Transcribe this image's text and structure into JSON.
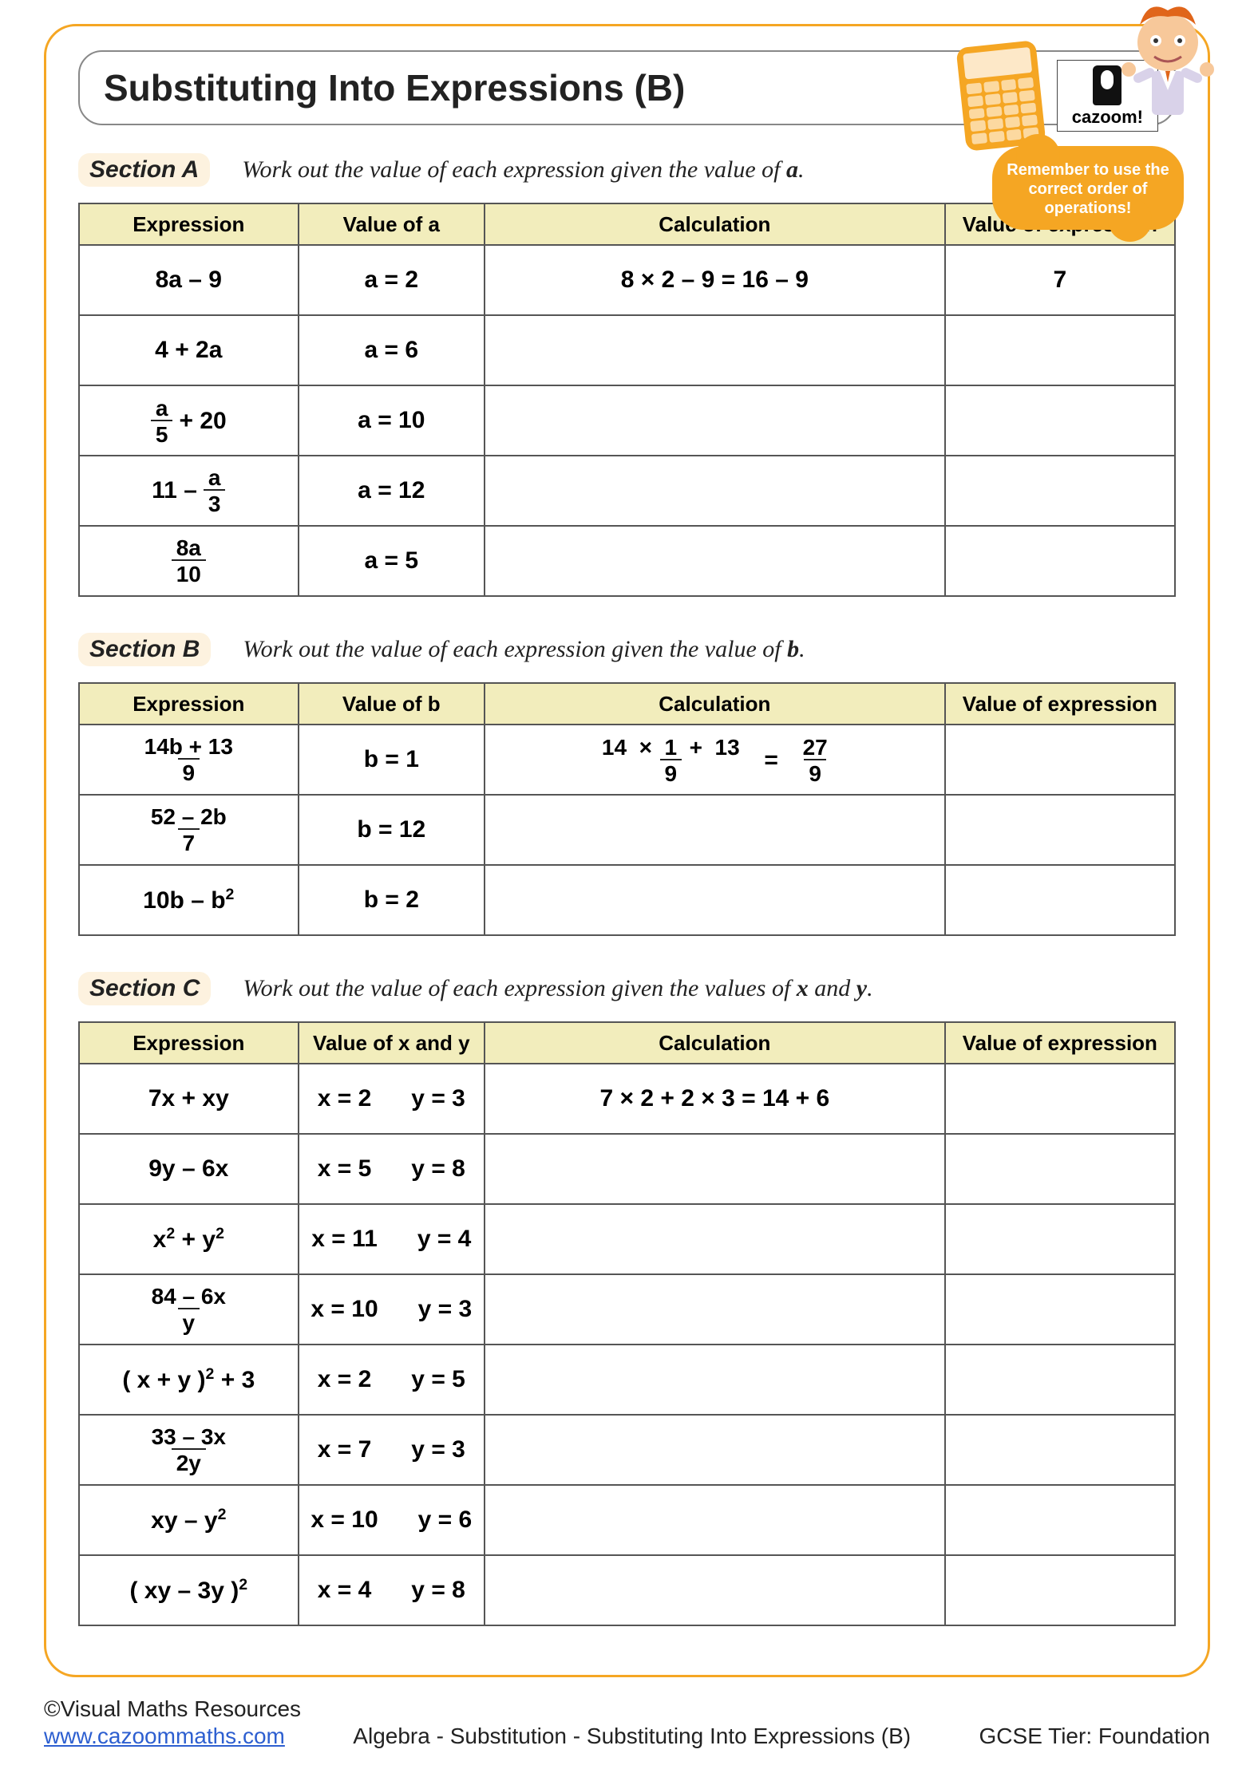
{
  "title": "Substituting Into Expressions (B)",
  "logo_text": "cazoom!",
  "reminder": "Remember to use the correct order of operations!",
  "sections": {
    "a": {
      "label": "Section A",
      "instr_pre": "Work out the value of each expression given the value of ",
      "instr_var": "a",
      "instr_post": ".",
      "headers": {
        "expr": "Expression",
        "val": "Value of a",
        "calc": "Calculation",
        "res": "Value of expression"
      },
      "rows": [
        {
          "expr_html": "8a – 9",
          "val": "a = 2",
          "calc_html": "8 × 2 – 9  =  16 – 9",
          "res": "7"
        },
        {
          "expr_html": "4 + 2a",
          "val": "a = 6",
          "calc_html": "",
          "res": ""
        },
        {
          "expr_html": "<span class='expr-wrap'><span class='frac'><span class='num'>a</span><span class='den'>5</span></span> + 20</span>",
          "val": "a = 10",
          "calc_html": "",
          "res": ""
        },
        {
          "expr_html": "<span class='expr-wrap'>11 – <span class='frac'><span class='num'>a</span><span class='den'>3</span></span></span>",
          "val": "a = 12",
          "calc_html": "",
          "res": ""
        },
        {
          "expr_html": "<span class='frac'><span class='num'>8a</span><span class='den'>10</span></span>",
          "val": "a = 5",
          "calc_html": "",
          "res": ""
        }
      ]
    },
    "b": {
      "label": "Section B",
      "instr_pre": "Work out the value of each expression given the value of ",
      "instr_var": "b",
      "instr_post": ".",
      "headers": {
        "expr": "Expression",
        "val": "Value of b",
        "calc": "Calculation",
        "res": "Value of expression"
      },
      "rows": [
        {
          "expr_html": "<span class='frac'><span class='num'>14b + 13</span><span class='den'>9</span></span>",
          "val": "b = 1",
          "calc_html": "<span class='expr-wrap'><span class='frac'><span class='num'>14 &nbsp;×&nbsp; 1 &nbsp;+&nbsp; 13</span><span class='den'>9</span></span>&nbsp; = &nbsp;<span class='frac'><span class='num'>27</span><span class='den'>9</span></span></span>",
          "res": ""
        },
        {
          "expr_html": "<span class='frac'><span class='num'>52 – 2b</span><span class='den'>7</span></span>",
          "val": "b = 12",
          "calc_html": "",
          "res": ""
        },
        {
          "expr_html": "10b – b<sup>2</sup>",
          "val": "b = 2",
          "calc_html": "",
          "res": ""
        }
      ]
    },
    "c": {
      "label": "Section C",
      "instr_pre": "Work out the value of each expression given the values of ",
      "instr_var": "x",
      "instr_mid": " and ",
      "instr_var2": "y",
      "instr_post": ".",
      "headers": {
        "expr": "Expression",
        "val": "Value of x and y",
        "calc": "Calculation",
        "res": "Value of expression"
      },
      "rows": [
        {
          "expr_html": "7x + xy",
          "x": "x = 2",
          "y": "y = 3",
          "calc_html": "7 × 2 + 2 × 3  =  14 + 6",
          "res": ""
        },
        {
          "expr_html": "9y – 6x",
          "x": "x = 5",
          "y": "y = 8",
          "calc_html": "",
          "res": ""
        },
        {
          "expr_html": "x<sup>2</sup> + y<sup>2</sup>",
          "x": "x = 11",
          "y": "y = 4",
          "calc_html": "",
          "res": ""
        },
        {
          "expr_html": "<span class='frac'><span class='num'>84 – 6x</span><span class='den'>y</span></span>",
          "x": "x = 10",
          "y": "y = 3",
          "calc_html": "",
          "res": ""
        },
        {
          "expr_html": "( x + y )<sup>2</sup> + 3",
          "x": "x = 2",
          "y": "y = 5",
          "calc_html": "",
          "res": ""
        },
        {
          "expr_html": "<span class='frac'><span class='num'>33 – 3x</span><span class='den'>2y</span></span>",
          "x": "x = 7",
          "y": "y = 3",
          "calc_html": "",
          "res": ""
        },
        {
          "expr_html": "xy – y<sup>2</sup>",
          "x": "x = 10",
          "y": "y = 6",
          "calc_html": "",
          "res": ""
        },
        {
          "expr_html": "( xy – 3y )<sup>2</sup>",
          "x": "x = 4",
          "y": "y = 8",
          "calc_html": "",
          "res": ""
        }
      ]
    }
  },
  "footer": {
    "copyright": "©Visual Maths Resources",
    "url_text": "www.cazoommaths.com",
    "breadcrumb": "Algebra - Substitution - Substituting Into Expressions (B)",
    "tier": "GCSE Tier: Foundation"
  },
  "colors": {
    "accent": "#f5a623",
    "header_bg": "#f2edbc",
    "border": "#555555"
  }
}
